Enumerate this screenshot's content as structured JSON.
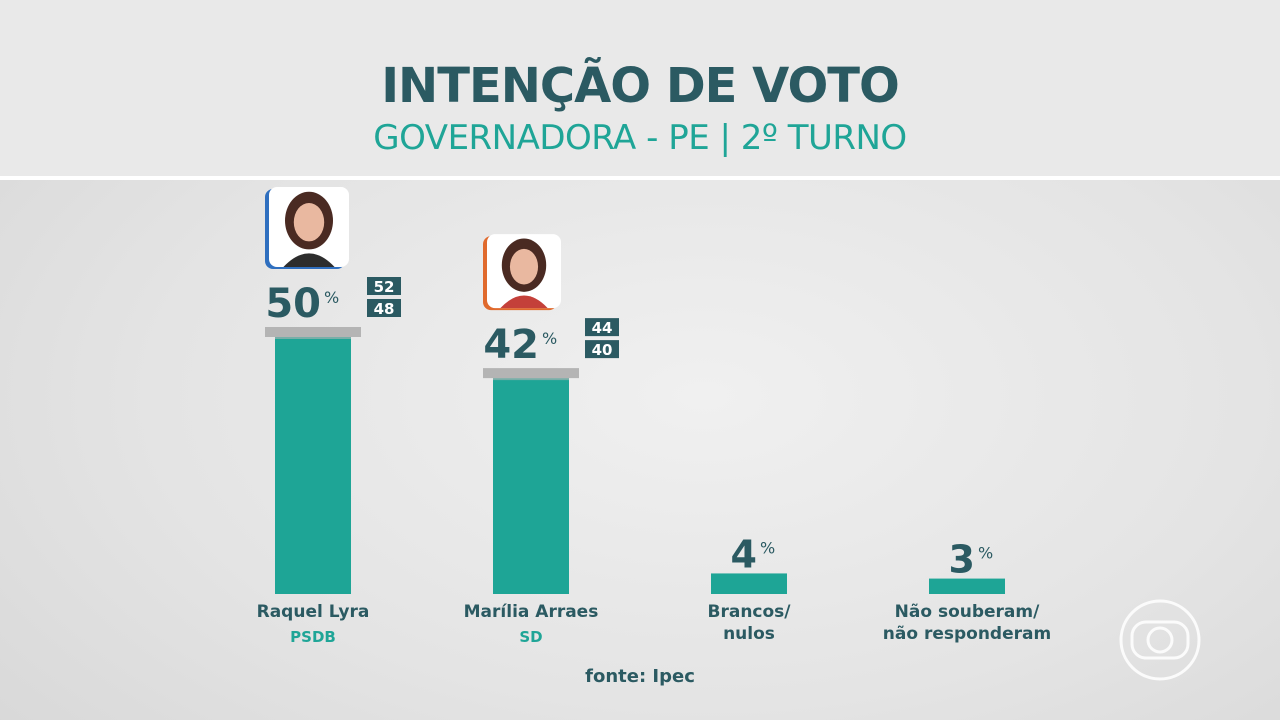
{
  "header": {
    "title": "INTENÇÃO DE VOTO",
    "subtitle": "GOVERNADORA - PE | 2º TURNO"
  },
  "source": "fonte: Ipec",
  "colors": {
    "bar": "#1ea596",
    "bar_cap": "#b4b4b4",
    "text_dark": "#2b5a62",
    "text_accent": "#1fa597",
    "psdb_frame": "#2f6fbf",
    "sd_frame": "#e06a2d"
  },
  "chart_data": {
    "type": "bar",
    "title": "INTENÇÃO DE VOTO",
    "subtitle": "GOVERNADORA - PE | 2º TURNO",
    "unit": "%",
    "ylim": [
      0,
      55
    ],
    "grid": false,
    "bars": [
      {
        "label_lines": [
          "Raquel Lyra"
        ],
        "party": "PSDB",
        "value": 50,
        "value_text": "50",
        "margin_high": 52,
        "margin_low": 48,
        "photo": "candidate-photo-raquel-lyra"
      },
      {
        "label_lines": [
          "Marília Arraes"
        ],
        "party": "SD",
        "value": 42,
        "value_text": "42",
        "margin_high": 44,
        "margin_low": 40,
        "photo": "candidate-photo-marilia-arraes"
      },
      {
        "label_lines": [
          "Brancos/",
          "nulos"
        ],
        "party": "",
        "value": 4,
        "value_text": "4"
      },
      {
        "label_lines": [
          "Não souberam/",
          "não responderam"
        ],
        "party": "",
        "value": 3,
        "value_text": "3"
      }
    ]
  }
}
